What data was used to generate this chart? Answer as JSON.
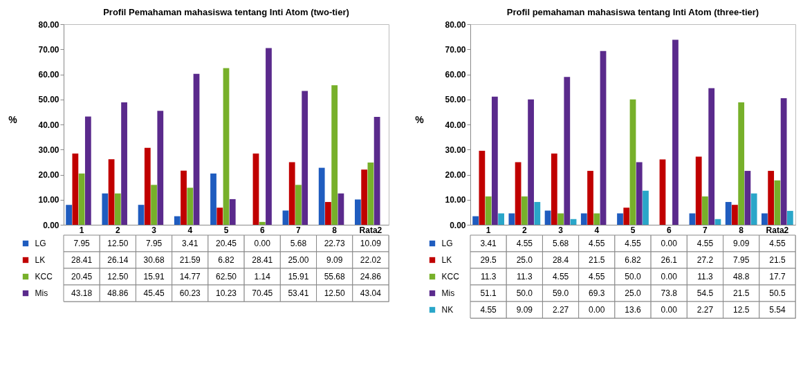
{
  "chart_data": [
    {
      "type": "bar",
      "legend": "bottom left",
      "title": "Profil Pemahaman  mahasiswa  tentang  Inti Atom  (two-tier)",
      "ylabel": "%",
      "categories": [
        "1",
        "2",
        "3",
        "4",
        "5",
        "6",
        "7",
        "8",
        "Rata2"
      ],
      "ylim": [
        0,
        80
      ],
      "yticks": [
        {
          "value": 0,
          "label": "0.00"
        },
        {
          "value": 10,
          "label": "10.00"
        },
        {
          "value": 20,
          "label": "20.00"
        },
        {
          "value": 30,
          "label": "30.00"
        },
        {
          "value": 40,
          "label": "40.00"
        },
        {
          "value": 50,
          "label": "50.00"
        },
        {
          "value": 60,
          "label": "60.00"
        },
        {
          "value": 70,
          "label": "70.00"
        },
        {
          "value": 80,
          "label": "80.00"
        }
      ],
      "series": [
        {
          "name": "LG",
          "color": "#1f5cbf",
          "values": [
            7.95,
            12.5,
            7.95,
            3.41,
            20.45,
            0,
            5.68,
            22.73,
            10.09
          ],
          "value_labels": [
            "7.95",
            "12.50",
            "7.95",
            "3.41",
            "20.45",
            "0.00",
            "5.68",
            "22.73",
            "10.09"
          ]
        },
        {
          "name": "LK",
          "color": "#c00000",
          "values": [
            28.41,
            26.14,
            30.68,
            21.59,
            6.82,
            28.41,
            25,
            9.09,
            22.02
          ],
          "value_labels": [
            "28.41",
            "26.14",
            "30.68",
            "21.59",
            "6.82",
            "28.41",
            "25.00",
            "9.09",
            "22.02"
          ]
        },
        {
          "name": "KCC",
          "color": "#77b02a",
          "values": [
            20.45,
            12.5,
            15.91,
            14.77,
            62.5,
            1.14,
            15.91,
            55.68,
            24.86
          ],
          "value_labels": [
            "20.45",
            "12.50",
            "15.91",
            "14.77",
            "62.50",
            "1.14",
            "15.91",
            "55.68",
            "24.86"
          ]
        },
        {
          "name": "Mis",
          "color": "#5a2a8c",
          "values": [
            43.18,
            48.86,
            45.45,
            60.23,
            10.23,
            70.45,
            53.41,
            12.5,
            43.04
          ],
          "value_labels": [
            "43.18",
            "48.86",
            "45.45",
            "60.23",
            "10.23",
            "70.45",
            "53.41",
            "12.50",
            "43.04"
          ]
        }
      ]
    },
    {
      "type": "bar",
      "legend": "bottom left",
      "title": "Profil pemahaman mahasiswa  tentang  Inti  Atom (three-tier)",
      "ylabel": "%",
      "categories": [
        "1",
        "2",
        "3",
        "4",
        "5",
        "6",
        "7",
        "8",
        "Rata2"
      ],
      "ylim": [
        0,
        80
      ],
      "yticks": [
        {
          "value": 0,
          "label": "0.00"
        },
        {
          "value": 10,
          "label": "10.00"
        },
        {
          "value": 20,
          "label": "20.00"
        },
        {
          "value": 30,
          "label": "30.00"
        },
        {
          "value": 40,
          "label": "40.00"
        },
        {
          "value": 50,
          "label": "50.00"
        },
        {
          "value": 60,
          "label": "60.00"
        },
        {
          "value": 70,
          "label": "70.00"
        },
        {
          "value": 80,
          "label": "80.00"
        }
      ],
      "series": [
        {
          "name": "LG",
          "color": "#1f5cbf",
          "values": [
            3.41,
            4.55,
            5.68,
            4.55,
            4.55,
            0,
            4.55,
            9.09,
            4.55
          ],
          "value_labels": [
            "3.41",
            "4.55",
            "5.68",
            "4.55",
            "4.55",
            "0.00",
            "4.55",
            "9.09",
            "4.55"
          ]
        },
        {
          "name": "LK",
          "color": "#c00000",
          "values": [
            29.5,
            25,
            28.4,
            21.5,
            6.82,
            26.1,
            27.2,
            7.95,
            21.5
          ],
          "value_labels": [
            "29.5",
            "25.0",
            "28.4",
            "21.5",
            "6.82",
            "26.1",
            "27.2",
            "7.95",
            "21.5"
          ]
        },
        {
          "name": "KCC",
          "color": "#77b02a",
          "values": [
            11.3,
            11.3,
            4.55,
            4.55,
            50,
            0,
            11.3,
            48.8,
            17.7
          ],
          "value_labels": [
            "11.3",
            "11.3",
            "4.55",
            "4.55",
            "50.0",
            "0.00",
            "11.3",
            "48.8",
            "17.7"
          ]
        },
        {
          "name": "Mis",
          "color": "#5a2a8c",
          "values": [
            51.1,
            50,
            59,
            69.3,
            25,
            73.8,
            54.5,
            21.5,
            50.5
          ],
          "value_labels": [
            "51.1",
            "50.0",
            "59.0",
            "69.3",
            "25.0",
            "73.8",
            "54.5",
            "21.5",
            "50.5"
          ]
        },
        {
          "name": "NK",
          "color": "#2aa6c9",
          "values": [
            4.55,
            9.09,
            2.27,
            0,
            13.6,
            0,
            2.27,
            12.5,
            5.54
          ],
          "value_labels": [
            "4.55",
            "9.09",
            "2.27",
            "0.00",
            "13.6",
            "0.00",
            "2.27",
            "12.5",
            "5.54"
          ]
        }
      ]
    }
  ]
}
